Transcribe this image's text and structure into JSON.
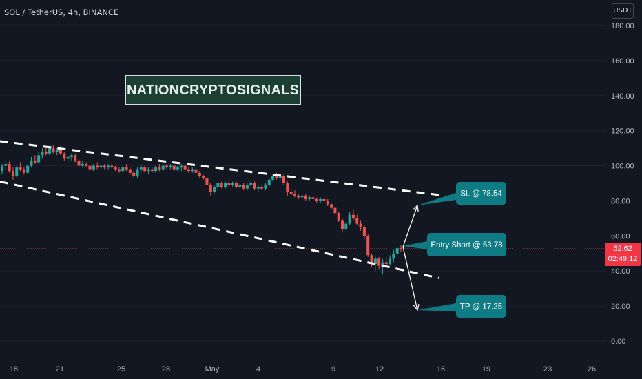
{
  "header": {
    "symbol_line": "SOL / TetherUS, 4h, BINANCE",
    "currency": "USDT"
  },
  "watermark_text": "NATIONCRYPTOSIGNALS",
  "price_tag": {
    "price": "52.62",
    "countdown": "02:49:12"
  },
  "colors": {
    "background": "#131722",
    "up": "#26a69a",
    "down": "#ef5350",
    "callout": "#0f7c85",
    "trendline": "#ffffff",
    "price_tag": "#f23645"
  },
  "annotations": {
    "sl_label": "SL @ 78.54",
    "entry_label": "Entry Short @ 53.78",
    "tp_label": "TP @ 17.25"
  },
  "chart_data": {
    "type": "candlestick",
    "y_axis": {
      "ticks": [
        "180.00",
        "160.00",
        "140.00",
        "120.00",
        "100.00",
        "80.00",
        "60.00",
        "40.00",
        "20.00",
        "0.00"
      ],
      "range": [
        -8,
        192
      ]
    },
    "x_axis": {
      "ticks": [
        "18",
        "21",
        "25",
        "28",
        "May",
        "4",
        "9",
        "12",
        "16",
        "19",
        "23",
        "26"
      ]
    },
    "current_price": 52.62,
    "levels": {
      "sl": 78.54,
      "entry": 53.78,
      "tp": 17.25
    },
    "trendlines": [
      {
        "name": "upper",
        "start": {
          "x": "16",
          "y": 114
        },
        "end": {
          "x": "May 16",
          "y": 83
        }
      },
      {
        "name": "lower",
        "start": {
          "x": "16",
          "y": 91
        },
        "end": {
          "x": "May 16",
          "y": 36
        }
      }
    ],
    "candles": [
      {
        "o": 97,
        "h": 101,
        "l": 95,
        "c": 100
      },
      {
        "o": 100,
        "h": 103,
        "l": 98,
        "c": 101
      },
      {
        "o": 101,
        "h": 103,
        "l": 96,
        "c": 97
      },
      {
        "o": 97,
        "h": 99,
        "l": 92,
        "c": 94
      },
      {
        "o": 94,
        "h": 100,
        "l": 93,
        "c": 99
      },
      {
        "o": 99,
        "h": 102,
        "l": 97,
        "c": 98
      },
      {
        "o": 98,
        "h": 99,
        "l": 95,
        "c": 96
      },
      {
        "o": 96,
        "h": 101,
        "l": 95,
        "c": 100
      },
      {
        "o": 100,
        "h": 105,
        "l": 99,
        "c": 103
      },
      {
        "o": 103,
        "h": 106,
        "l": 101,
        "c": 102
      },
      {
        "o": 102,
        "h": 108,
        "l": 101,
        "c": 106
      },
      {
        "o": 106,
        "h": 110,
        "l": 104,
        "c": 108
      },
      {
        "o": 108,
        "h": 111,
        "l": 106,
        "c": 107
      },
      {
        "o": 107,
        "h": 112,
        "l": 106,
        "c": 110
      },
      {
        "o": 110,
        "h": 112,
        "l": 107,
        "c": 108
      },
      {
        "o": 108,
        "h": 110,
        "l": 106,
        "c": 109
      },
      {
        "o": 109,
        "h": 111,
        "l": 106,
        "c": 107
      },
      {
        "o": 107,
        "h": 108,
        "l": 103,
        "c": 104
      },
      {
        "o": 104,
        "h": 106,
        "l": 101,
        "c": 105
      },
      {
        "o": 105,
        "h": 107,
        "l": 103,
        "c": 106
      },
      {
        "o": 106,
        "h": 107,
        "l": 102,
        "c": 103
      },
      {
        "o": 103,
        "h": 104,
        "l": 98,
        "c": 100
      },
      {
        "o": 100,
        "h": 103,
        "l": 99,
        "c": 101
      },
      {
        "o": 101,
        "h": 102,
        "l": 99,
        "c": 100
      },
      {
        "o": 100,
        "h": 101,
        "l": 97,
        "c": 98
      },
      {
        "o": 98,
        "h": 101,
        "l": 97,
        "c": 100
      },
      {
        "o": 100,
        "h": 102,
        "l": 98,
        "c": 99
      },
      {
        "o": 99,
        "h": 101,
        "l": 97,
        "c": 100
      },
      {
        "o": 100,
        "h": 101,
        "l": 98,
        "c": 99
      },
      {
        "o": 99,
        "h": 101,
        "l": 98,
        "c": 100
      },
      {
        "o": 100,
        "h": 102,
        "l": 98,
        "c": 99
      },
      {
        "o": 99,
        "h": 100,
        "l": 97,
        "c": 98
      },
      {
        "o": 98,
        "h": 99,
        "l": 96,
        "c": 97
      },
      {
        "o": 97,
        "h": 100,
        "l": 96,
        "c": 99
      },
      {
        "o": 99,
        "h": 101,
        "l": 97,
        "c": 98
      },
      {
        "o": 98,
        "h": 99,
        "l": 95,
        "c": 96
      },
      {
        "o": 96,
        "h": 97,
        "l": 93,
        "c": 94
      },
      {
        "o": 94,
        "h": 99,
        "l": 93,
        "c": 98
      },
      {
        "o": 98,
        "h": 101,
        "l": 96,
        "c": 99
      },
      {
        "o": 99,
        "h": 100,
        "l": 96,
        "c": 97
      },
      {
        "o": 97,
        "h": 99,
        "l": 95,
        "c": 98
      },
      {
        "o": 98,
        "h": 99,
        "l": 96,
        "c": 97
      },
      {
        "o": 97,
        "h": 100,
        "l": 96,
        "c": 99
      },
      {
        "o": 99,
        "h": 101,
        "l": 97,
        "c": 98
      },
      {
        "o": 98,
        "h": 101,
        "l": 97,
        "c": 100
      },
      {
        "o": 100,
        "h": 101,
        "l": 98,
        "c": 99
      },
      {
        "o": 99,
        "h": 101,
        "l": 98,
        "c": 100
      },
      {
        "o": 100,
        "h": 101,
        "l": 97,
        "c": 98
      },
      {
        "o": 98,
        "h": 100,
        "l": 97,
        "c": 99
      },
      {
        "o": 99,
        "h": 101,
        "l": 97,
        "c": 100
      },
      {
        "o": 100,
        "h": 101,
        "l": 97,
        "c": 98
      },
      {
        "o": 98,
        "h": 99,
        "l": 96,
        "c": 97
      },
      {
        "o": 97,
        "h": 99,
        "l": 96,
        "c": 98
      },
      {
        "o": 98,
        "h": 99,
        "l": 95,
        "c": 96
      },
      {
        "o": 96,
        "h": 97,
        "l": 93,
        "c": 94
      },
      {
        "o": 94,
        "h": 95,
        "l": 92,
        "c": 93
      },
      {
        "o": 93,
        "h": 94,
        "l": 88,
        "c": 89
      },
      {
        "o": 89,
        "h": 90,
        "l": 83,
        "c": 85
      },
      {
        "o": 85,
        "h": 89,
        "l": 84,
        "c": 88
      },
      {
        "o": 88,
        "h": 91,
        "l": 86,
        "c": 90
      },
      {
        "o": 90,
        "h": 91,
        "l": 87,
        "c": 88
      },
      {
        "o": 88,
        "h": 91,
        "l": 87,
        "c": 90
      },
      {
        "o": 90,
        "h": 92,
        "l": 88,
        "c": 89
      },
      {
        "o": 89,
        "h": 91,
        "l": 88,
        "c": 90
      },
      {
        "o": 90,
        "h": 91,
        "l": 87,
        "c": 88
      },
      {
        "o": 88,
        "h": 90,
        "l": 87,
        "c": 89
      },
      {
        "o": 89,
        "h": 90,
        "l": 86,
        "c": 87
      },
      {
        "o": 87,
        "h": 90,
        "l": 86,
        "c": 89
      },
      {
        "o": 89,
        "h": 91,
        "l": 88,
        "c": 90
      },
      {
        "o": 90,
        "h": 91,
        "l": 86,
        "c": 87
      },
      {
        "o": 87,
        "h": 89,
        "l": 85,
        "c": 88
      },
      {
        "o": 88,
        "h": 89,
        "l": 86,
        "c": 87
      },
      {
        "o": 87,
        "h": 90,
        "l": 86,
        "c": 89
      },
      {
        "o": 89,
        "h": 93,
        "l": 88,
        "c": 92
      },
      {
        "o": 92,
        "h": 95,
        "l": 91,
        "c": 94
      },
      {
        "o": 94,
        "h": 96,
        "l": 92,
        "c": 93
      },
      {
        "o": 93,
        "h": 95,
        "l": 92,
        "c": 94
      },
      {
        "o": 94,
        "h": 95,
        "l": 89,
        "c": 90
      },
      {
        "o": 90,
        "h": 91,
        "l": 83,
        "c": 85
      },
      {
        "o": 85,
        "h": 87,
        "l": 83,
        "c": 84
      },
      {
        "o": 84,
        "h": 86,
        "l": 82,
        "c": 83
      },
      {
        "o": 83,
        "h": 84,
        "l": 81,
        "c": 82
      },
      {
        "o": 82,
        "h": 84,
        "l": 80,
        "c": 83
      },
      {
        "o": 83,
        "h": 84,
        "l": 80,
        "c": 81
      },
      {
        "o": 81,
        "h": 83,
        "l": 80,
        "c": 82
      },
      {
        "o": 82,
        "h": 83,
        "l": 80,
        "c": 81
      },
      {
        "o": 81,
        "h": 82,
        "l": 79,
        "c": 80
      },
      {
        "o": 80,
        "h": 82,
        "l": 79,
        "c": 81
      },
      {
        "o": 81,
        "h": 83,
        "l": 79,
        "c": 80
      },
      {
        "o": 80,
        "h": 81,
        "l": 77,
        "c": 78
      },
      {
        "o": 78,
        "h": 79,
        "l": 75,
        "c": 76
      },
      {
        "o": 76,
        "h": 77,
        "l": 72,
        "c": 73
      },
      {
        "o": 73,
        "h": 74,
        "l": 68,
        "c": 69
      },
      {
        "o": 69,
        "h": 70,
        "l": 62,
        "c": 64
      },
      {
        "o": 64,
        "h": 68,
        "l": 63,
        "c": 67
      },
      {
        "o": 67,
        "h": 74,
        "l": 66,
        "c": 72
      },
      {
        "o": 72,
        "h": 75,
        "l": 69,
        "c": 70
      },
      {
        "o": 70,
        "h": 72,
        "l": 66,
        "c": 67
      },
      {
        "o": 67,
        "h": 69,
        "l": 63,
        "c": 65
      },
      {
        "o": 65,
        "h": 66,
        "l": 58,
        "c": 60
      },
      {
        "o": 60,
        "h": 61,
        "l": 48,
        "c": 49
      },
      {
        "o": 49,
        "h": 50,
        "l": 42,
        "c": 44
      },
      {
        "o": 44,
        "h": 49,
        "l": 40,
        "c": 47
      },
      {
        "o": 47,
        "h": 48,
        "l": 41,
        "c": 43
      },
      {
        "o": 43,
        "h": 47,
        "l": 38,
        "c": 45
      },
      {
        "o": 45,
        "h": 48,
        "l": 43,
        "c": 44
      },
      {
        "o": 44,
        "h": 49,
        "l": 43,
        "c": 47
      },
      {
        "o": 47,
        "h": 52,
        "l": 45,
        "c": 50
      },
      {
        "o": 50,
        "h": 54,
        "l": 49,
        "c": 53
      },
      {
        "o": 53,
        "h": 55,
        "l": 51,
        "c": 52.62
      }
    ]
  }
}
